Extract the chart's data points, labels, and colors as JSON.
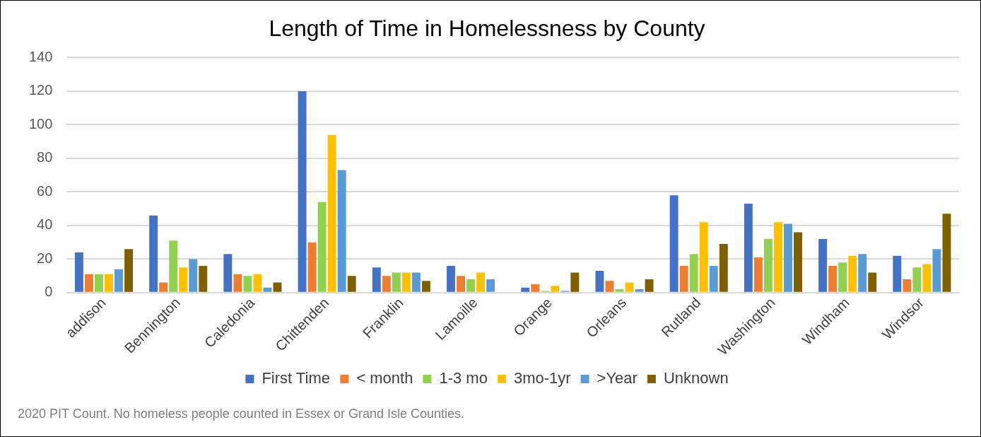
{
  "chart_data": {
    "type": "bar",
    "title": "Length of Time in Homelessness by County",
    "categories": [
      "addison",
      "Bennington",
      "Caledonia",
      "Chittenden",
      "Franklin",
      "Lamoille",
      "Orange",
      "Orleans",
      "Rutland",
      "Washington",
      "Windham",
      "Windsor"
    ],
    "series": [
      {
        "name": "First Time",
        "color": "#4472c4",
        "values": [
          24,
          46,
          23,
          120,
          15,
          16,
          3,
          13,
          58,
          53,
          32,
          22
        ]
      },
      {
        "name": "< month",
        "color": "#ed7d31",
        "values": [
          11,
          6,
          11,
          30,
          10,
          10,
          5,
          7,
          16,
          21,
          16,
          8
        ]
      },
      {
        "name": "1-3 mo",
        "color": "#92d050",
        "values": [
          11,
          31,
          10,
          54,
          12,
          8,
          1,
          2,
          23,
          32,
          18,
          15
        ]
      },
      {
        "name": "3mo-1yr",
        "color": "#ffc000",
        "values": [
          11,
          15,
          11,
          94,
          12,
          12,
          4,
          6,
          42,
          42,
          22,
          17
        ]
      },
      {
        "name": ">Year",
        "color": "#5b9bd5",
        "values": [
          14,
          20,
          3,
          73,
          12,
          8,
          1,
          2,
          16,
          41,
          23,
          26
        ]
      },
      {
        "name": "Unknown",
        "color": "#7f6000",
        "values": [
          26,
          16,
          6,
          10,
          7,
          0,
          12,
          8,
          29,
          36,
          12,
          47
        ]
      }
    ],
    "ylim": [
      0,
      140
    ],
    "yticks": [
      0,
      20,
      40,
      60,
      80,
      100,
      120,
      140
    ],
    "grid": "y",
    "legend": "bottom",
    "annotations": [
      "2020 PIT Count. No homeless people counted in Essex or Grand Isle Counties."
    ]
  }
}
